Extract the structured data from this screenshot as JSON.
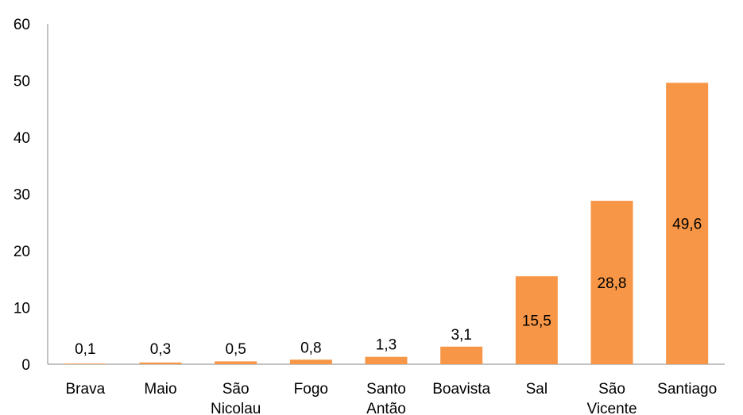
{
  "chart_data": {
    "type": "bar",
    "categories": [
      [
        "Brava"
      ],
      [
        "Maio"
      ],
      [
        "São",
        "Nicolau"
      ],
      [
        "Fogo"
      ],
      [
        "Santo",
        "Antão"
      ],
      [
        "Boavista"
      ],
      [
        "Sal"
      ],
      [
        "São",
        "Vicente"
      ],
      [
        "Santiago"
      ]
    ],
    "values": [
      0.1,
      0.3,
      0.5,
      0.8,
      1.3,
      3.1,
      15.5,
      28.8,
      49.6
    ],
    "data_labels": [
      "0,1",
      "0,3",
      "0,5",
      "0,8",
      "1,3",
      "3,1",
      "15,5",
      "28,8",
      "49,6"
    ],
    "ylim": [
      0,
      60
    ],
    "yticks": [
      0,
      10,
      20,
      30,
      40,
      50,
      60
    ],
    "ytick_labels": [
      "0",
      "10",
      "20",
      "30",
      "40",
      "50",
      "60"
    ],
    "grid": false,
    "legend": "none",
    "bar_color": "#F79646",
    "axis_color": "#868686"
  }
}
